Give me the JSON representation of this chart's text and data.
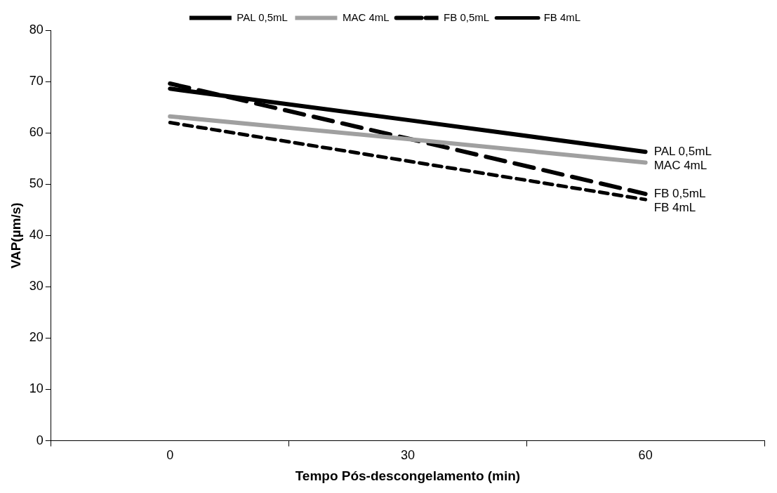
{
  "chart_data": {
    "type": "line",
    "xlabel": "Tempo Pós-descongelamento (min)",
    "ylabel": "VAP(µm/s)",
    "categories": [
      "0",
      "30",
      "60"
    ],
    "ylim": [
      0,
      80
    ],
    "yticks": [
      0,
      10,
      20,
      30,
      40,
      50,
      60,
      70,
      80
    ],
    "grid": false,
    "legend": "top",
    "marker": "none",
    "series": [
      {
        "name": "PAL 0,5mL",
        "color": "#000000",
        "line_style": "solid",
        "values": [
          68.6,
          62.5,
          56.3
        ]
      },
      {
        "name": "MAC 4mL",
        "color": "#a0a0a0",
        "line_style": "solid",
        "values": [
          63.2,
          58.8,
          54.2
        ]
      },
      {
        "name": "FB 0,5mL",
        "color": "#000000",
        "line_style": "dashed",
        "values": [
          69.6,
          58.9,
          48.1
        ]
      },
      {
        "name": "FB 4mL",
        "color": "#000000",
        "line_style": "dotted",
        "values": [
          62.0,
          54.5,
          47.0
        ]
      }
    ]
  }
}
